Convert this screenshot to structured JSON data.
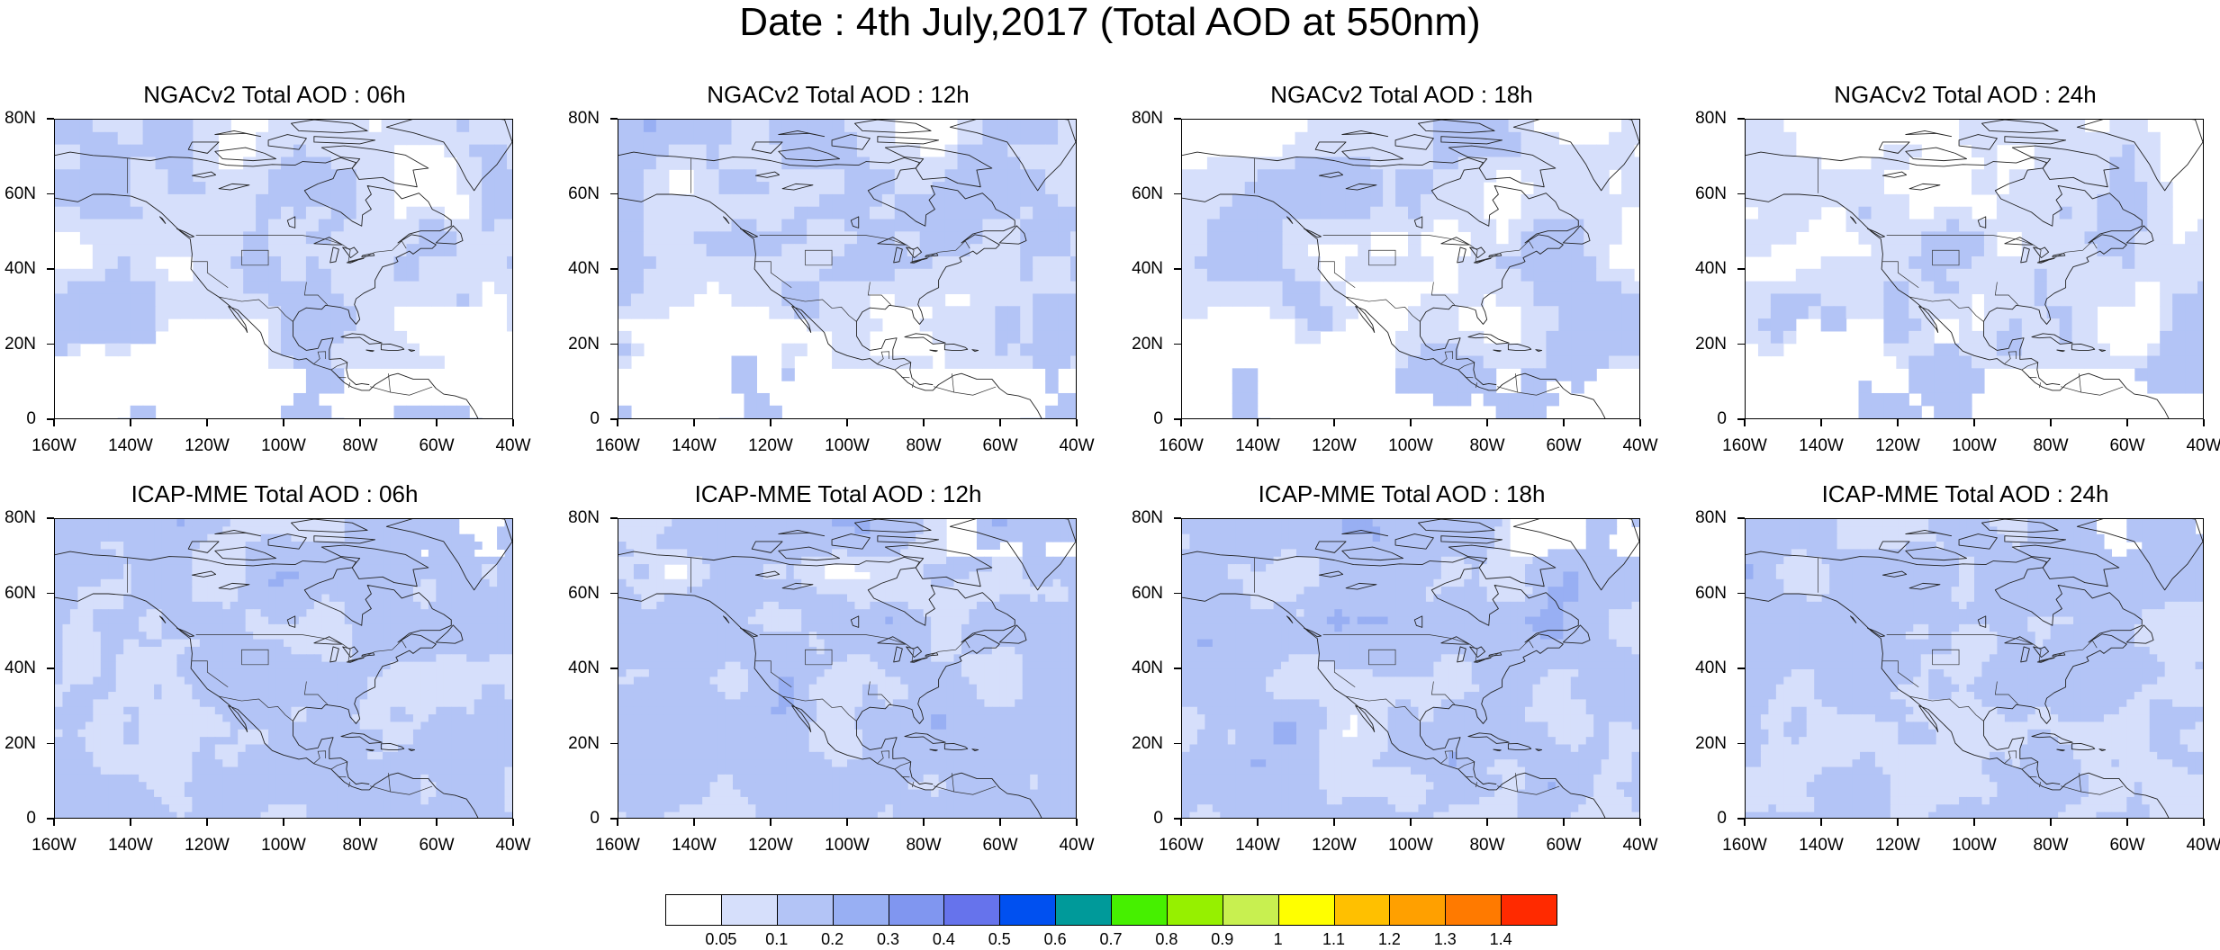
{
  "figure": {
    "title": "Date : 4th July,2017 (Total AOD at 550nm)"
  },
  "chart_data": {
    "type": "heatmap",
    "title": "Date : 4th July,2017 (Total AOD at 550nm)",
    "xlim": [
      -160,
      -40
    ],
    "ylim": [
      0,
      80
    ],
    "xticks": [
      "160W",
      "140W",
      "120W",
      "100W",
      "80W",
      "60W",
      "40W"
    ],
    "yticks": [
      "0",
      "20N",
      "40N",
      "60N",
      "80N"
    ],
    "colorbar": {
      "levels": [
        "0.05",
        "0.1",
        "0.2",
        "0.3",
        "0.4",
        "0.5",
        "0.6",
        "0.7",
        "0.8",
        "0.9",
        "1",
        "1.1",
        "1.2",
        "1.3",
        "1.4"
      ],
      "colors": [
        "#ffffff",
        "#d6dffb",
        "#b3c4f6",
        "#98aff3",
        "#8096f0",
        "#6673ec",
        "#0050f0",
        "#009a9a",
        "#46f000",
        "#96f000",
        "#c8f050",
        "#ffff00",
        "#ffc000",
        "#ffa000",
        "#ff7a00",
        "#ff2a00"
      ]
    },
    "panels": [
      {
        "title": "NGACv2 Total AOD : 06h",
        "model": "NGACv2",
        "forecast_hour": "06h"
      },
      {
        "title": "NGACv2 Total AOD : 12h",
        "model": "NGACv2",
        "forecast_hour": "12h"
      },
      {
        "title": "NGACv2 Total AOD : 18h",
        "model": "NGACv2",
        "forecast_hour": "18h"
      },
      {
        "title": "NGACv2 Total AOD : 24h",
        "model": "NGACv2",
        "forecast_hour": "24h"
      },
      {
        "title": "ICAP-MME Total AOD : 06h",
        "model": "ICAP-MME",
        "forecast_hour": "06h"
      },
      {
        "title": "ICAP-MME Total AOD : 12h",
        "model": "ICAP-MME",
        "forecast_hour": "12h"
      },
      {
        "title": "ICAP-MME Total AOD : 18h",
        "model": "ICAP-MME",
        "forecast_hour": "18h"
      },
      {
        "title": "ICAP-MME Total AOD : 24h",
        "model": "ICAP-MME",
        "forecast_hour": "24h"
      }
    ]
  }
}
